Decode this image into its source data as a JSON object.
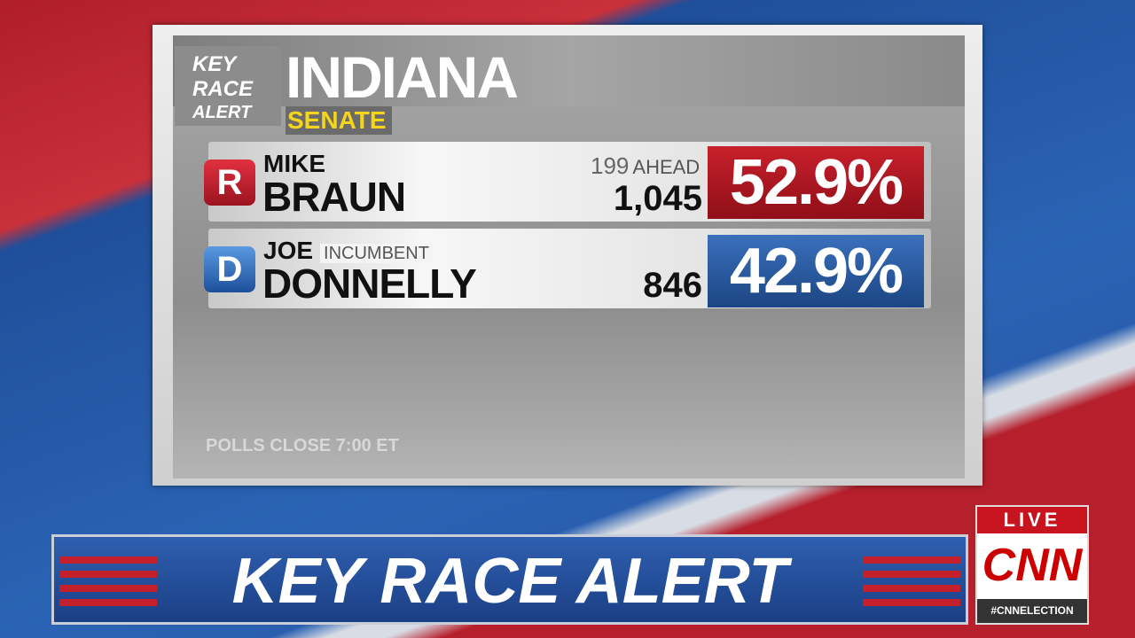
{
  "badge": {
    "lines": [
      "KEY",
      "RACE",
      "ALERT"
    ]
  },
  "state": "INDIANA",
  "race": "SENATE",
  "candidates": [
    {
      "party": "R",
      "first": "MIKE",
      "last": "BRAUN",
      "lead": "199",
      "lead_label": "AHEAD",
      "votes": "1,045",
      "percent": "52.9%"
    },
    {
      "party": "D",
      "first": "JOE",
      "status": "INCUMBENT",
      "last": "DONNELLY",
      "votes": "846",
      "percent": "42.9%"
    }
  ],
  "footer": "POLLS CLOSE 7:00 ET",
  "banner": "KEY RACE ALERT",
  "live": "LIVE",
  "network": "CNN",
  "hashtag": "#CNNELECTION"
}
